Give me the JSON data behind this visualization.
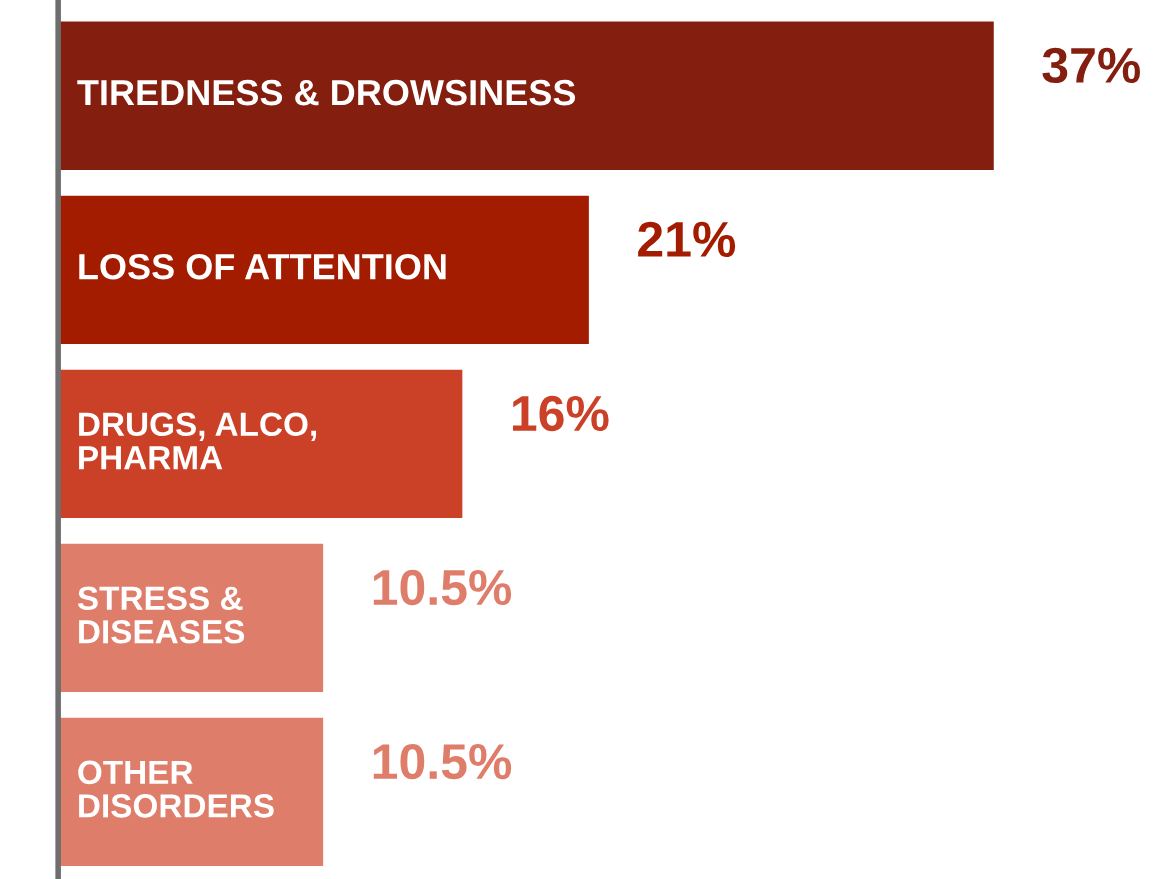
{
  "chart_data": {
    "type": "bar",
    "orientation": "horizontal",
    "categories": [
      "TIREDNESS & DROWSINESS",
      "LOSS OF ATTENTION",
      "DRUGS, ALCO, PHARMA",
      "STRESS & DISEASES",
      "OTHER DISORDERS"
    ],
    "values": [
      37,
      21,
      16,
      10.5,
      10.5
    ],
    "colors": [
      "#841f0f",
      "#a31c00",
      "#cb4127",
      "#df7d6b",
      "#df7d6b"
    ],
    "value_labels": [
      "37%",
      "21%",
      "16%",
      "10.5%",
      "10.5%"
    ]
  }
}
